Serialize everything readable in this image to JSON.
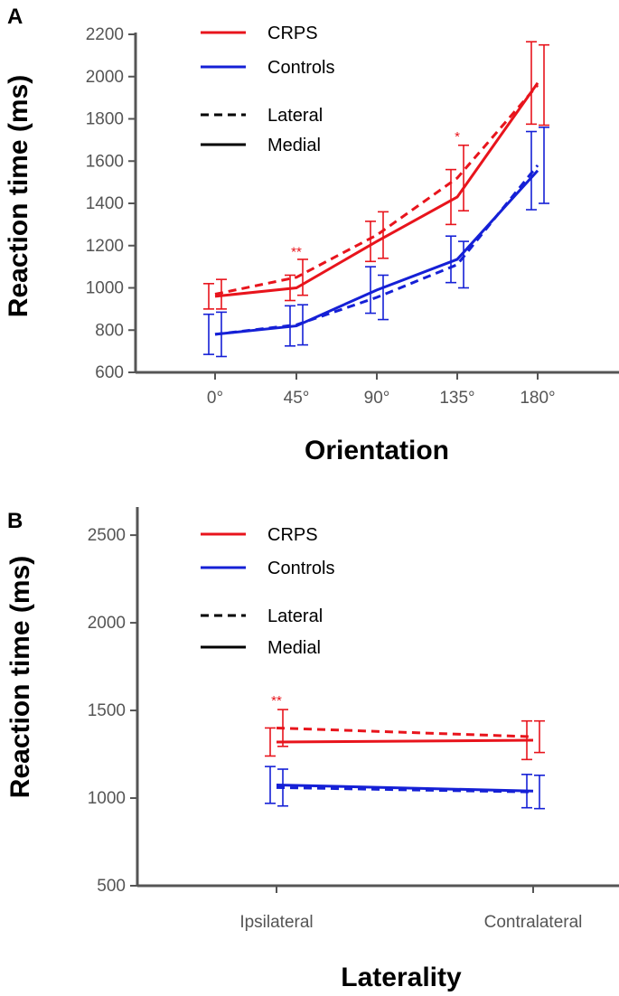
{
  "colors": {
    "crps": "#e8141c",
    "controls": "#1520d6",
    "axis": "#555555",
    "text": "#000000"
  },
  "chart_data": [
    {
      "panel": "A",
      "type": "line",
      "xlabel": "Orientation",
      "ylabel": "Reaction time (ms)",
      "categories": [
        "0°",
        "45°",
        "90°",
        "135°",
        "180°"
      ],
      "ylim": [
        600,
        2200
      ],
      "yticks": [
        600,
        800,
        1000,
        1200,
        1400,
        1600,
        1800,
        2000,
        2200
      ],
      "legend": {
        "groups": [
          "CRPS",
          "Controls"
        ],
        "styles": [
          "Lateral",
          "Medial"
        ],
        "position": "top-left"
      },
      "series": [
        {
          "name": "CRPS Lateral",
          "group": "crps",
          "style": "dashed",
          "values": [
            970,
            1050,
            1250,
            1520,
            1960
          ],
          "errors": [
            70,
            85,
            110,
            155,
            190
          ]
        },
        {
          "name": "CRPS Medial",
          "group": "crps",
          "style": "solid",
          "values": [
            960,
            1000,
            1220,
            1430,
            1970
          ],
          "errors": [
            60,
            60,
            95,
            130,
            195
          ]
        },
        {
          "name": "Controls Lateral",
          "group": "controls",
          "style": "dashed",
          "values": [
            780,
            825,
            955,
            1110,
            1580
          ],
          "errors": [
            105,
            95,
            105,
            110,
            180
          ]
        },
        {
          "name": "Controls Medial",
          "group": "controls",
          "style": "solid",
          "values": [
            780,
            820,
            990,
            1135,
            1555
          ],
          "errors": [
            95,
            95,
            110,
            110,
            185
          ]
        }
      ],
      "annotations": [
        {
          "text": "**",
          "category": 1,
          "value": 1150
        },
        {
          "text": "*",
          "category": 3,
          "value": 1695
        }
      ]
    },
    {
      "panel": "B",
      "type": "line",
      "xlabel": "Laterality",
      "ylabel": "Reaction time (ms)",
      "categories": [
        "Ipsilateral",
        "Contralateral"
      ],
      "ylim": [
        500,
        2650
      ],
      "yticks": [
        500,
        1000,
        1500,
        2000,
        2500
      ],
      "legend": {
        "groups": [
          "CRPS",
          "Controls"
        ],
        "styles": [
          "Lateral",
          "Medial"
        ],
        "position": "top-left"
      },
      "series": [
        {
          "name": "CRPS Lateral",
          "group": "crps",
          "style": "dashed",
          "values": [
            1400,
            1350
          ],
          "errors": [
            105,
            90
          ]
        },
        {
          "name": "CRPS Medial",
          "group": "crps",
          "style": "solid",
          "values": [
            1320,
            1330
          ],
          "errors": [
            80,
            110
          ]
        },
        {
          "name": "Controls Lateral",
          "group": "controls",
          "style": "dashed",
          "values": [
            1060,
            1035
          ],
          "errors": [
            105,
            95
          ]
        },
        {
          "name": "Controls Medial",
          "group": "controls",
          "style": "solid",
          "values": [
            1075,
            1040
          ],
          "errors": [
            105,
            95
          ]
        }
      ],
      "annotations": [
        {
          "text": "**",
          "category": 0,
          "value": 1530
        }
      ]
    }
  ]
}
